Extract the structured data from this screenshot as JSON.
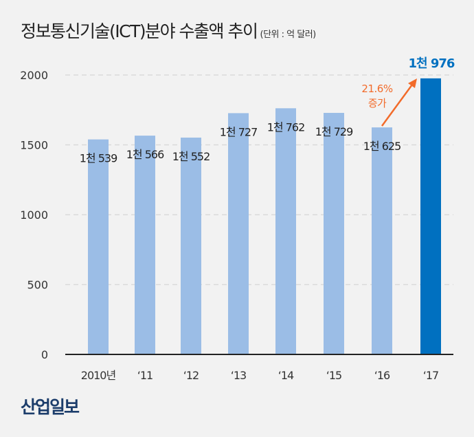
{
  "title": "정보통신기술(ICT)분야 수출액 추이",
  "unit": "(단위 : 억 달러)",
  "logo": "산업일보",
  "colors": {
    "bar": "#9bbde6",
    "highlight_bar": "#0070c0",
    "annotation": "#f26b2a",
    "grid": "#d9d9d9",
    "axis": "#222222"
  },
  "chart_data": {
    "type": "bar",
    "title": "정보통신기술(ICT)분야 수출액 추이",
    "ylabel": "",
    "xlabel": "",
    "categories": [
      "2010년",
      "'11",
      "'12",
      "'13",
      "'14",
      "'15",
      "'16",
      "'17"
    ],
    "values": [
      1539,
      1566,
      1552,
      1727,
      1762,
      1729,
      1625,
      1976
    ],
    "data_labels": [
      "1천 539",
      "1천 566",
      "1천 552",
      "1천 727",
      "1천 762",
      "1천 729",
      "1천 625",
      "1천 976"
    ],
    "yticks": [
      "0",
      "500",
      "1000",
      "1500",
      "2000"
    ],
    "ylim": [
      0,
      2000
    ],
    "grid": "horizontal dashed",
    "highlight_index": 7,
    "annotation": {
      "lines": [
        "21.6%",
        "증가"
      ],
      "from": "'16",
      "to": "'17"
    }
  }
}
